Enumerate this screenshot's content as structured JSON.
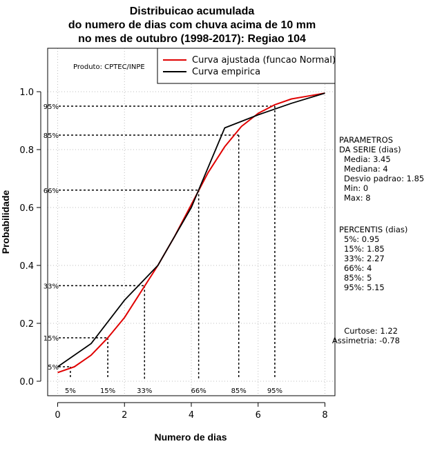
{
  "chart_data": {
    "type": "line",
    "title_lines": [
      "Distribuicao acumulada",
      "do numero de dias com chuva acima de 10 mm",
      "no mes de outubro (1998-2017): Regiao 104"
    ],
    "xlabel": "Numero de dias",
    "ylabel": "Probabilidade",
    "xlim": [
      -0.3,
      8.3
    ],
    "ylim": [
      -0.05,
      1.15
    ],
    "x_ticks": [
      0,
      2,
      4,
      6,
      8
    ],
    "y_ticks": [
      0.0,
      0.2,
      0.4,
      0.6,
      0.8,
      1.0
    ],
    "y_tick_labels": [
      "0.0",
      "0.2",
      "0.4",
      "0.6",
      "0.8",
      "1.0"
    ],
    "grid": true,
    "grid_color": "#bdbdbd",
    "product_label": "Produto: CPTEC/INPE",
    "legend": [
      {
        "label": "Curva ajustada (funcao Normal)",
        "color": "#e00000"
      },
      {
        "label": "Curva empirica",
        "color": "#000000"
      }
    ],
    "series": [
      {
        "name": "Curva ajustada (funcao Normal)",
        "color": "#e00000",
        "x": [
          0,
          0.5,
          1,
          1.5,
          2,
          2.5,
          3,
          3.5,
          4,
          4.5,
          5,
          5.5,
          6,
          6.5,
          7,
          7.5,
          8
        ],
        "y": [
          0.03,
          0.05,
          0.09,
          0.15,
          0.22,
          0.31,
          0.4,
          0.5,
          0.61,
          0.72,
          0.81,
          0.88,
          0.925,
          0.955,
          0.975,
          0.985,
          0.995
        ]
      },
      {
        "name": "Curva empirica",
        "color": "#000000",
        "x": [
          0,
          1,
          2,
          3,
          4,
          5,
          6,
          7,
          8
        ],
        "y": [
          0.05,
          0.13,
          0.28,
          0.4,
          0.6,
          0.875,
          0.92,
          0.96,
          0.995
        ]
      }
    ],
    "percentile_guides": [
      {
        "label": "5%",
        "y": 0.05,
        "x": 0.38
      },
      {
        "label": "15%",
        "y": 0.15,
        "x": 1.5
      },
      {
        "label": "33%",
        "y": 0.33,
        "x": 2.6
      },
      {
        "label": "66%",
        "y": 0.66,
        "x": 4.22
      },
      {
        "label": "85%",
        "y": 0.85,
        "x": 5.42
      },
      {
        "label": "95%",
        "y": 0.95,
        "x": 6.5
      }
    ],
    "side_text": {
      "params_title": [
        "PARAMETROS",
        "DA SERIE (dias)"
      ],
      "params": [
        "Media: 3.45",
        "Mediana: 4",
        "Desvio padrao: 1.85",
        "Min: 0",
        "Max: 8"
      ],
      "percentis_title": "PERCENTIS (dias)",
      "percentis": [
        "5%: 0.95",
        "15%: 1.85",
        "33%: 2.27",
        "66%: 4",
        "85%: 5",
        "95%: 5.15"
      ],
      "curtose": "Curtose: 1.22",
      "assimetria": "Assimetria: -0.78"
    }
  }
}
